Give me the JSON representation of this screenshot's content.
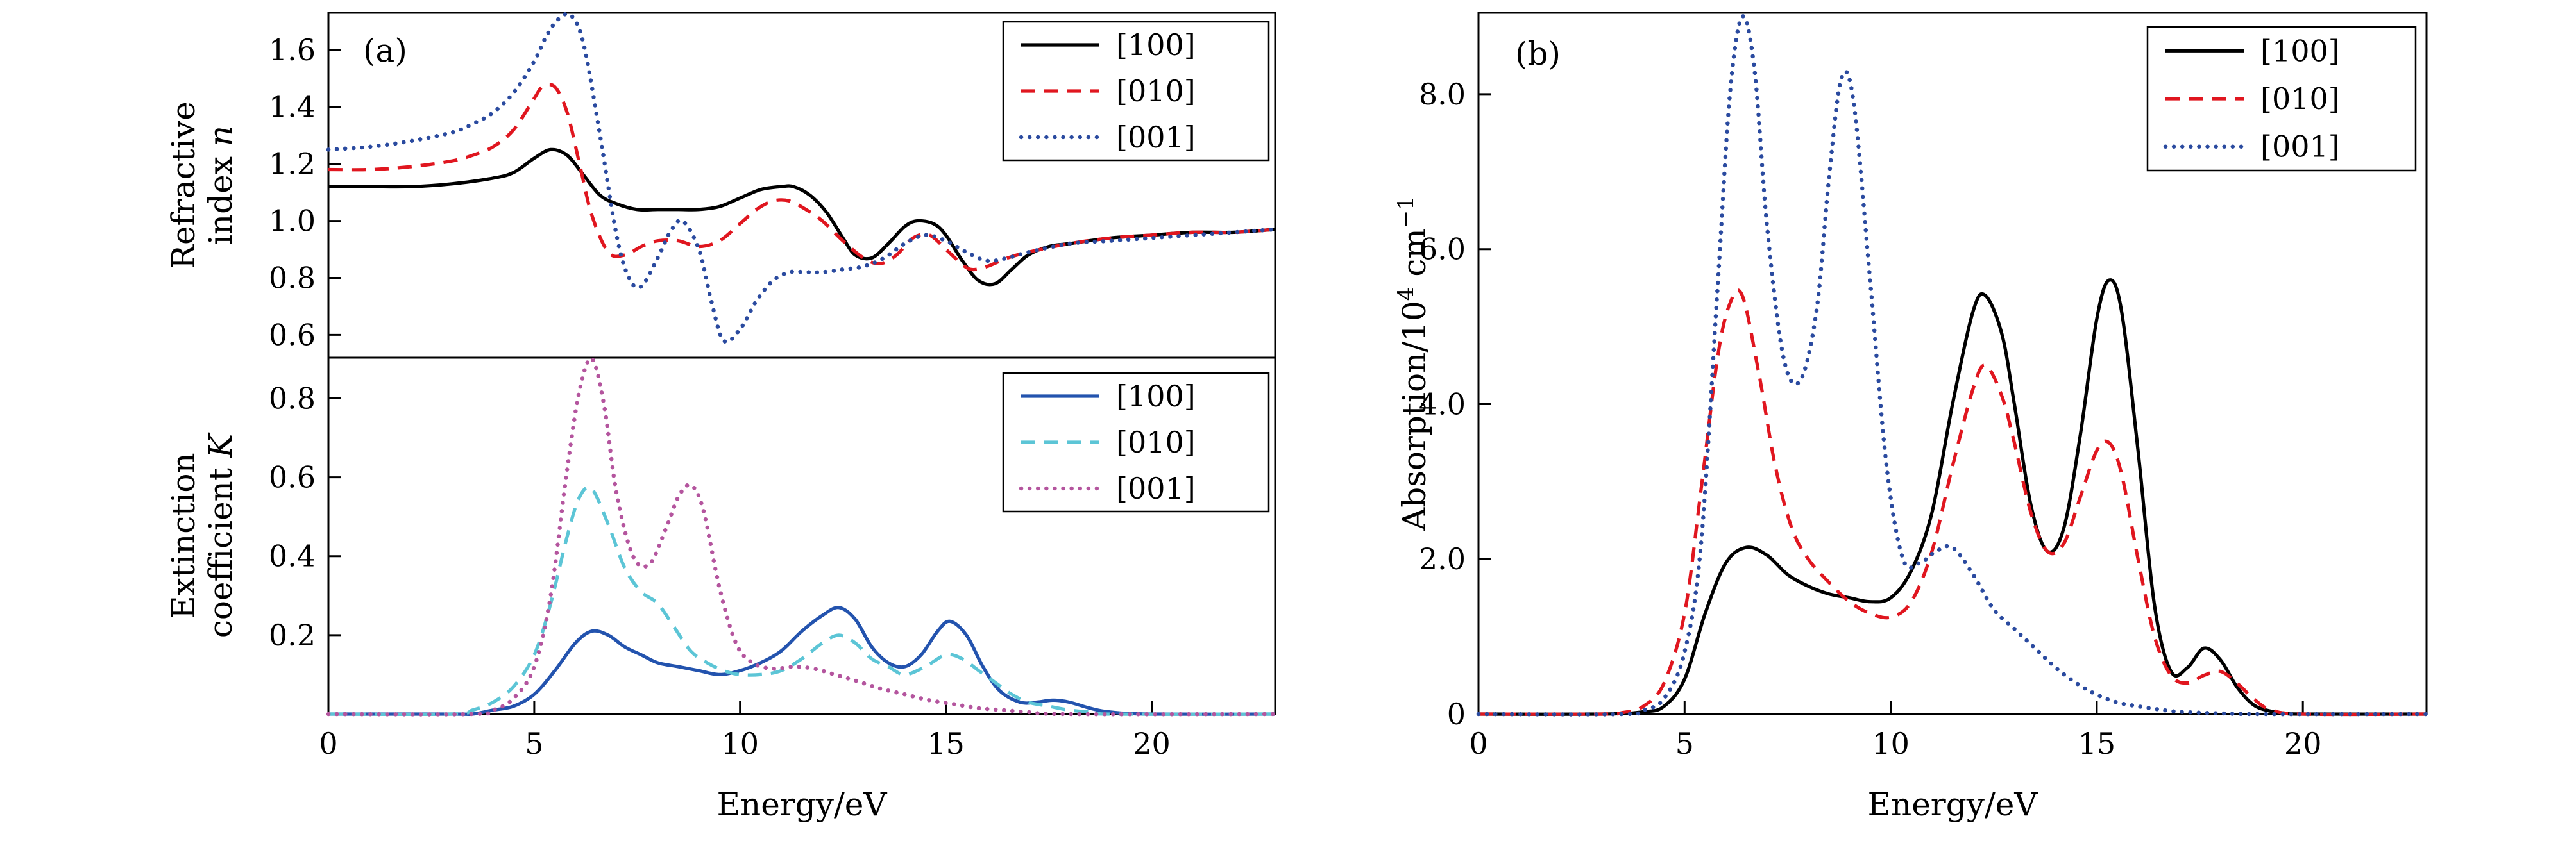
{
  "figure": {
    "background": "#ffffff",
    "frame_color": "#000000"
  },
  "chart_data": [
    {
      "id": "refractive-index",
      "type": "line",
      "panel_label": "(a)",
      "title": "",
      "ylabel": "Refractive index n",
      "ylabel_lines": [
        "Refractive",
        "index |n|"
      ],
      "xlabel": "",
      "xlim": [
        0,
        23
      ],
      "ylim": [
        0.52,
        1.73
      ],
      "grid": false,
      "legend_position": "top-right",
      "xticks": {
        "values": [
          0,
          5,
          10,
          15,
          20
        ],
        "labels": [
          "0",
          "5",
          "10",
          "15",
          "20"
        ]
      },
      "yticks": {
        "values": [
          0.6,
          0.8,
          1.0,
          1.2,
          1.4,
          1.6
        ],
        "labels": [
          "0.6",
          "0.8",
          "1.0",
          "1.2",
          "1.4",
          "1.6"
        ]
      },
      "series": [
        {
          "name": "[100]",
          "color": "#000000",
          "line_style": "solid",
          "x": [
            0,
            1,
            2,
            3,
            4,
            4.5,
            5,
            5.4,
            5.8,
            6.2,
            6.6,
            7,
            7.5,
            8,
            8.5,
            9,
            9.5,
            10,
            10.5,
            11,
            11.3,
            11.7,
            12.1,
            12.5,
            12.8,
            13.2,
            13.6,
            14,
            14.3,
            14.7,
            15,
            15.4,
            15.8,
            16.2,
            16.6,
            17,
            17.5,
            18,
            19,
            20,
            21,
            22,
            23
          ],
          "y": [
            1.12,
            1.12,
            1.12,
            1.13,
            1.15,
            1.17,
            1.22,
            1.25,
            1.23,
            1.16,
            1.09,
            1.06,
            1.04,
            1.04,
            1.04,
            1.04,
            1.05,
            1.08,
            1.11,
            1.12,
            1.12,
            1.09,
            1.03,
            0.94,
            0.88,
            0.87,
            0.92,
            0.98,
            1.0,
            0.99,
            0.95,
            0.86,
            0.79,
            0.78,
            0.83,
            0.88,
            0.91,
            0.92,
            0.94,
            0.95,
            0.96,
            0.96,
            0.97
          ]
        },
        {
          "name": "[010]",
          "color": "#e0161f",
          "line_style": "dashed",
          "x": [
            0,
            1,
            2,
            3,
            3.5,
            4,
            4.5,
            5,
            5.2,
            5.5,
            5.8,
            6.1,
            6.4,
            6.8,
            7.2,
            7.6,
            8,
            8.5,
            9,
            9.5,
            10,
            10.4,
            10.8,
            11.2,
            11.6,
            12,
            12.5,
            13,
            13.4,
            13.8,
            14.2,
            14.6,
            15,
            15.3,
            15.6,
            16,
            16.5,
            17,
            18,
            19,
            20,
            21,
            22,
            23
          ],
          "y": [
            1.18,
            1.18,
            1.19,
            1.21,
            1.23,
            1.26,
            1.32,
            1.43,
            1.47,
            1.47,
            1.38,
            1.2,
            1.02,
            0.89,
            0.88,
            0.91,
            0.93,
            0.93,
            0.91,
            0.93,
            0.99,
            1.04,
            1.07,
            1.07,
            1.04,
            1.0,
            0.93,
            0.87,
            0.85,
            0.88,
            0.94,
            0.95,
            0.9,
            0.86,
            0.83,
            0.84,
            0.87,
            0.89,
            0.92,
            0.94,
            0.95,
            0.96,
            0.96,
            0.97
          ]
        },
        {
          "name": "[001]",
          "color": "#2a4a9f",
          "line_style": "dotted",
          "x": [
            0,
            1,
            2,
            3,
            3.5,
            4,
            4.5,
            5,
            5.3,
            5.6,
            5.9,
            6.2,
            6.6,
            7,
            7.3,
            7.6,
            8,
            8.3,
            8.6,
            9,
            9.3,
            9.6,
            10,
            10.4,
            10.8,
            11.2,
            11.6,
            12,
            12.5,
            13,
            13.5,
            14,
            14.5,
            15,
            15.5,
            16,
            16.5,
            17,
            18,
            19,
            20,
            21,
            22,
            23
          ],
          "y": [
            1.25,
            1.26,
            1.28,
            1.31,
            1.34,
            1.38,
            1.45,
            1.56,
            1.65,
            1.71,
            1.72,
            1.62,
            1.3,
            0.95,
            0.8,
            0.77,
            0.87,
            0.96,
            1.0,
            0.9,
            0.72,
            0.58,
            0.62,
            0.72,
            0.79,
            0.82,
            0.82,
            0.82,
            0.83,
            0.84,
            0.87,
            0.92,
            0.95,
            0.93,
            0.89,
            0.86,
            0.87,
            0.89,
            0.92,
            0.93,
            0.94,
            0.95,
            0.96,
            0.97
          ]
        }
      ]
    },
    {
      "id": "extinction-coefficient",
      "type": "line",
      "panel_label": "",
      "title": "",
      "ylabel": "Extinction coefficient K",
      "ylabel_lines": [
        "Extinction",
        "coefficient |K|"
      ],
      "xlabel": "Energy/eV",
      "xlim": [
        0,
        23
      ],
      "ylim": [
        0,
        0.903
      ],
      "grid": false,
      "legend_position": "top-right",
      "xticks": {
        "values": [
          0,
          5,
          10,
          15,
          20
        ],
        "labels": [
          "0",
          "5",
          "10",
          "15",
          "20"
        ]
      },
      "yticks": {
        "values": [
          0.2,
          0.4,
          0.6,
          0.8
        ],
        "labels": [
          "0.2",
          "0.4",
          "0.6",
          "0.8"
        ]
      },
      "series": [
        {
          "name": "[100]",
          "color": "#2353ae",
          "line_style": "solid",
          "x": [
            0,
            3,
            3.5,
            4,
            4.5,
            5,
            5.5,
            6,
            6.4,
            6.8,
            7.2,
            7.6,
            8,
            8.5,
            9,
            9.5,
            10,
            10.5,
            11,
            11.5,
            12,
            12.4,
            12.8,
            13.2,
            13.6,
            14,
            14.4,
            14.8,
            15.1,
            15.5,
            15.9,
            16.3,
            16.8,
            17.2,
            17.6,
            18,
            18.5,
            19,
            20,
            23
          ],
          "y": [
            0,
            0,
            0,
            0.01,
            0.02,
            0.05,
            0.11,
            0.18,
            0.21,
            0.2,
            0.17,
            0.15,
            0.13,
            0.12,
            0.11,
            0.1,
            0.11,
            0.13,
            0.16,
            0.21,
            0.25,
            0.27,
            0.24,
            0.17,
            0.13,
            0.12,
            0.15,
            0.21,
            0.235,
            0.2,
            0.12,
            0.06,
            0.03,
            0.03,
            0.035,
            0.03,
            0.015,
            0.005,
            0,
            0
          ]
        },
        {
          "name": "[010]",
          "color": "#5cc5d6",
          "line_style": "dashed",
          "x": [
            0,
            3,
            3.5,
            4,
            4.5,
            5,
            5.4,
            5.8,
            6.1,
            6.4,
            6.8,
            7.2,
            7.6,
            8,
            8.4,
            8.8,
            9.2,
            9.6,
            10,
            10.5,
            11,
            11.5,
            12,
            12.4,
            12.8,
            13.2,
            13.6,
            14,
            14.5,
            15,
            15.4,
            15.8,
            16.2,
            16.6,
            17,
            17.5,
            18,
            18.5,
            19,
            23
          ],
          "y": [
            0,
            0,
            0.01,
            0.03,
            0.07,
            0.15,
            0.28,
            0.45,
            0.55,
            0.57,
            0.48,
            0.37,
            0.31,
            0.28,
            0.22,
            0.16,
            0.13,
            0.11,
            0.1,
            0.1,
            0.11,
            0.14,
            0.18,
            0.2,
            0.18,
            0.14,
            0.12,
            0.1,
            0.12,
            0.15,
            0.14,
            0.11,
            0.08,
            0.05,
            0.03,
            0.02,
            0.01,
            0.005,
            0,
            0
          ]
        },
        {
          "name": "[001]",
          "color": "#b4559e",
          "line_style": "dotted",
          "x": [
            0,
            3.5,
            4,
            4.5,
            5,
            5.4,
            5.8,
            6.1,
            6.4,
            6.7,
            7,
            7.4,
            7.8,
            8.2,
            8.5,
            8.8,
            9.1,
            9.5,
            9.9,
            10.3,
            10.8,
            11.3,
            11.8,
            12.3,
            12.8,
            13.4,
            14,
            14.6,
            15.2,
            15.8,
            16.4,
            17,
            18,
            23
          ],
          "y": [
            0,
            0,
            0.01,
            0.04,
            0.12,
            0.3,
            0.62,
            0.82,
            0.9,
            0.78,
            0.56,
            0.4,
            0.38,
            0.47,
            0.55,
            0.58,
            0.52,
            0.32,
            0.18,
            0.13,
            0.115,
            0.12,
            0.115,
            0.1,
            0.085,
            0.065,
            0.05,
            0.035,
            0.025,
            0.015,
            0.01,
            0.005,
            0,
            0
          ]
        }
      ]
    },
    {
      "id": "absorption",
      "type": "line",
      "panel_label": "(b)",
      "title": "",
      "ylabel": "Absorption/10⁴ cm⁻¹",
      "ylabel_lines": [
        "Absorption/10^{4} cm^{−1}"
      ],
      "xlabel": "Energy/eV",
      "xlim": [
        0,
        23
      ],
      "ylim": [
        0,
        9.05
      ],
      "grid": false,
      "legend_position": "top-right",
      "xticks": {
        "values": [
          0,
          5,
          10,
          15,
          20
        ],
        "labels": [
          "0",
          "5",
          "10",
          "15",
          "20"
        ]
      },
      "yticks": {
        "values": [
          0,
          2,
          4,
          6,
          8
        ],
        "labels": [
          "0",
          "2.0",
          "4.0",
          "6.0",
          "8.0"
        ]
      },
      "series": [
        {
          "name": "[100]",
          "color": "#000000",
          "line_style": "solid",
          "x": [
            0,
            3,
            4,
            4.5,
            5,
            5.5,
            6,
            6.5,
            7,
            7.5,
            8,
            8.5,
            9,
            9.5,
            10,
            10.5,
            11,
            11.5,
            12,
            12.3,
            12.7,
            13,
            13.4,
            13.8,
            14.2,
            14.6,
            15,
            15.3,
            15.6,
            16,
            16.4,
            16.8,
            17.2,
            17.6,
            18,
            18.4,
            18.8,
            19.2,
            19.6,
            20,
            23
          ],
          "y": [
            0,
            0,
            0.03,
            0.1,
            0.45,
            1.3,
            1.95,
            2.15,
            2.05,
            1.8,
            1.65,
            1.55,
            1.5,
            1.45,
            1.5,
            1.85,
            2.6,
            4.0,
            5.2,
            5.4,
            4.9,
            4.0,
            2.7,
            2.1,
            2.4,
            3.6,
            5.1,
            5.6,
            5.2,
            3.4,
            1.4,
            0.55,
            0.6,
            0.85,
            0.7,
            0.35,
            0.12,
            0.04,
            0.01,
            0,
            0
          ]
        },
        {
          "name": "[010]",
          "color": "#e0161f",
          "line_style": "dashed",
          "x": [
            0,
            3,
            3.5,
            4,
            4.5,
            5,
            5.4,
            5.8,
            6.1,
            6.4,
            6.8,
            7.2,
            7.6,
            8,
            8.5,
            9,
            9.5,
            10,
            10.5,
            11,
            11.5,
            12,
            12.3,
            12.7,
            13,
            13.4,
            13.8,
            14.2,
            14.6,
            15,
            15.3,
            15.6,
            16,
            16.4,
            16.8,
            17.2,
            17.6,
            18,
            18.4,
            18.8,
            19.2,
            20,
            23
          ],
          "y": [
            0,
            0,
            0.02,
            0.1,
            0.4,
            1.3,
            2.9,
            4.6,
            5.3,
            5.4,
            4.4,
            3.2,
            2.4,
            2.0,
            1.7,
            1.45,
            1.3,
            1.25,
            1.45,
            2.1,
            3.2,
            4.2,
            4.5,
            4.1,
            3.5,
            2.6,
            2.1,
            2.2,
            2.8,
            3.4,
            3.5,
            3.1,
            2.0,
            1.0,
            0.5,
            0.4,
            0.5,
            0.55,
            0.4,
            0.2,
            0.06,
            0,
            0
          ]
        },
        {
          "name": "[001]",
          "color": "#2a4a9f",
          "line_style": "dotted",
          "x": [
            0,
            3.5,
            4,
            4.5,
            5,
            5.4,
            5.8,
            6.1,
            6.4,
            6.7,
            7,
            7.4,
            7.8,
            8.2,
            8.5,
            8.8,
            9.1,
            9.5,
            9.9,
            10.3,
            10.7,
            11.1,
            11.5,
            12,
            12.5,
            13,
            13.5,
            14,
            14.5,
            15,
            15.5,
            16,
            16.5,
            17,
            18,
            19,
            23
          ],
          "y": [
            0,
            0,
            0.05,
            0.2,
            0.8,
            2.2,
            5.5,
            8.0,
            9.0,
            8.3,
            6.3,
            4.6,
            4.3,
            5.2,
            6.9,
            8.2,
            7.9,
            5.6,
            3.2,
            2.0,
            1.95,
            2.1,
            2.15,
            1.8,
            1.35,
            1.1,
            0.85,
            0.6,
            0.4,
            0.25,
            0.15,
            0.1,
            0.06,
            0.03,
            0.01,
            0,
            0
          ]
        }
      ]
    }
  ]
}
